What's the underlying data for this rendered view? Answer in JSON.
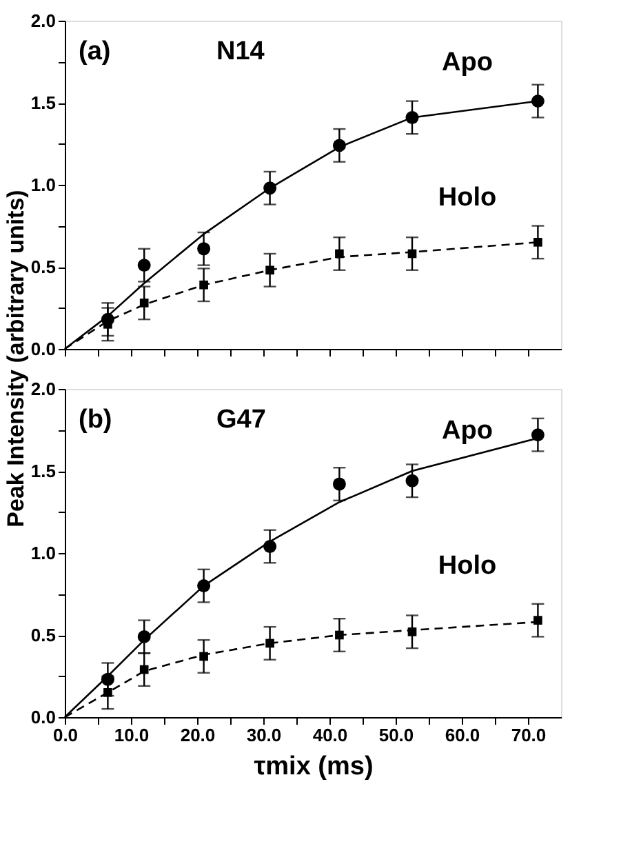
{
  "chart_data": [
    {
      "type": "scatter",
      "ylabel": "Peak Intensity (arbitrary units)",
      "annotations": [
        "(a)",
        "N14",
        "Apo",
        "Holo"
      ],
      "xlim": [
        0,
        75
      ],
      "ylim": [
        0,
        2
      ],
      "xticks": [
        0,
        5,
        10,
        15,
        20,
        25,
        30,
        35,
        40,
        45,
        50,
        55,
        60,
        65,
        70
      ],
      "yticks": [
        {
          "value": 0,
          "label": "0.0"
        },
        {
          "value": 0.25,
          "label": null
        },
        {
          "value": 0.5,
          "label": "0.5"
        },
        {
          "value": 0.75,
          "label": null
        },
        {
          "value": 1,
          "label": "1.0"
        },
        {
          "value": 1.25,
          "label": null
        },
        {
          "value": 1.5,
          "label": "1.5"
        },
        {
          "value": 1.75,
          "label": null
        },
        {
          "value": 2,
          "label": "2.0"
        }
      ],
      "tick_labels": "y",
      "grid": false,
      "series": [
        {
          "type": "scatter",
          "marker": "circle",
          "color": "#000000",
          "x": [
            6.5,
            12,
            21,
            31,
            41.5,
            52.5,
            71.5
          ],
          "values": [
            0.18,
            0.51,
            0.61,
            0.98,
            1.24,
            1.41,
            1.51
          ],
          "errors": [
            0.1,
            0.1,
            0.1,
            0.1,
            0.1,
            0.1,
            0.1
          ]
        },
        {
          "type": "scatter",
          "marker": "square",
          "color": "#000000",
          "x": [
            6.5,
            12,
            21,
            31,
            41.5,
            52.5,
            71.5
          ],
          "values": [
            0.15,
            0.28,
            0.39,
            0.48,
            0.58,
            0.58,
            0.65
          ],
          "errors": [
            0.1,
            0.1,
            0.1,
            0.1,
            0.1,
            0.1,
            0.1
          ]
        },
        {
          "type": "line",
          "line_style": "solid",
          "color": "#000000",
          "x": [
            0,
            6.5,
            12,
            21,
            31,
            41.5,
            52.5,
            71.5
          ],
          "values": [
            0,
            0.2,
            0.4,
            0.7,
            0.98,
            1.23,
            1.41,
            1.51
          ]
        },
        {
          "type": "line",
          "line_style": "dashed",
          "color": "#000000",
          "x": [
            0,
            6.5,
            12,
            21,
            31,
            41.5,
            52.5,
            71.5
          ],
          "values": [
            0,
            0.17,
            0.27,
            0.39,
            0.48,
            0.56,
            0.59,
            0.65
          ]
        }
      ]
    },
    {
      "type": "scatter",
      "xlabel": "τmix (ms)",
      "annotations": [
        "(b)",
        "G47",
        "Apo",
        "Holo"
      ],
      "xlim": [
        0,
        75
      ],
      "ylim": [
        0,
        2
      ],
      "xticks": [
        {
          "value": 0,
          "label": "0.0"
        },
        {
          "value": 5,
          "label": null
        },
        {
          "value": 10,
          "label": "10.0"
        },
        {
          "value": 15,
          "label": null
        },
        {
          "value": 20,
          "label": "20.0"
        },
        {
          "value": 25,
          "label": null
        },
        {
          "value": 30,
          "label": "30.0"
        },
        {
          "value": 35,
          "label": null
        },
        {
          "value": 40,
          "label": "40.0"
        },
        {
          "value": 45,
          "label": null
        },
        {
          "value": 50,
          "label": "50.0"
        },
        {
          "value": 55,
          "label": null
        },
        {
          "value": 60,
          "label": "60.0"
        },
        {
          "value": 65,
          "label": null
        },
        {
          "value": 70,
          "label": "70.0"
        }
      ],
      "yticks": [
        {
          "value": 0,
          "label": "0.0"
        },
        {
          "value": 0.25,
          "label": null
        },
        {
          "value": 0.5,
          "label": "0.5"
        },
        {
          "value": 0.75,
          "label": null
        },
        {
          "value": 1,
          "label": "1.0"
        },
        {
          "value": 1.25,
          "label": null
        },
        {
          "value": 1.5,
          "label": "1.5"
        },
        {
          "value": 1.75,
          "label": null
        },
        {
          "value": 2,
          "label": "2.0"
        }
      ],
      "grid": false,
      "series": [
        {
          "type": "scatter",
          "marker": "circle",
          "color": "#000000",
          "x": [
            6.5,
            12,
            21,
            31,
            41.5,
            52.5,
            71.5
          ],
          "values": [
            0.23,
            0.49,
            0.8,
            1.04,
            1.42,
            1.44,
            1.72
          ],
          "errors": [
            0.1,
            0.1,
            0.1,
            0.1,
            0.1,
            0.1,
            0.1
          ]
        },
        {
          "type": "scatter",
          "marker": "square",
          "color": "#000000",
          "x": [
            6.5,
            12,
            21,
            31,
            41.5,
            52.5,
            71.5
          ],
          "values": [
            0.15,
            0.29,
            0.37,
            0.45,
            0.5,
            0.52,
            0.59
          ],
          "errors": [
            0.1,
            0.1,
            0.1,
            0.1,
            0.1,
            0.1,
            0.1
          ]
        },
        {
          "type": "line",
          "line_style": "solid",
          "color": "#000000",
          "x": [
            0,
            6.5,
            12,
            21,
            31,
            41.5,
            52.5,
            71.5
          ],
          "values": [
            0,
            0.25,
            0.47,
            0.8,
            1.07,
            1.31,
            1.5,
            1.7
          ]
        },
        {
          "type": "line",
          "line_style": "dashed",
          "color": "#000000",
          "x": [
            0,
            6.5,
            12,
            21,
            31,
            41.5,
            52.5,
            71.5
          ],
          "values": [
            0,
            0.15,
            0.28,
            0.38,
            0.45,
            0.5,
            0.53,
            0.58
          ]
        }
      ]
    }
  ]
}
